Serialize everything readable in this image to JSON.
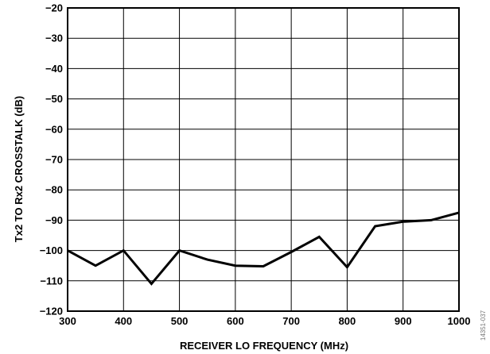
{
  "chart_data": {
    "type": "line",
    "xlabel": "RECEIVER LO FREQUENCY (MHz)",
    "ylabel": "Tx2 TO Rx2 CROSSTALK (dB)",
    "xlim": [
      300,
      1000
    ],
    "ylim": [
      -120,
      -20
    ],
    "xticks": [
      300,
      400,
      500,
      600,
      700,
      800,
      900,
      1000
    ],
    "yticks": [
      -20,
      -30,
      -40,
      -50,
      -60,
      -70,
      -80,
      -90,
      -100,
      -110,
      -120
    ],
    "xtick_labels": [
      "300",
      "400",
      "500",
      "600",
      "700",
      "800",
      "900",
      "1000"
    ],
    "ytick_labels": [
      "−20",
      "−30",
      "−40",
      "−50",
      "−60",
      "−70",
      "−80",
      "−90",
      "−100",
      "−110",
      "−120"
    ],
    "grid": true,
    "series": [
      {
        "x": [
          300,
          350,
          400,
          450,
          500,
          550,
          600,
          650,
          700,
          750,
          800,
          850,
          900,
          950,
          1000
        ],
        "y": [
          -100,
          -105,
          -100,
          -111,
          -100,
          -103,
          -105,
          -105.2,
          -100.5,
          -95.5,
          -105.5,
          -92,
          -90.5,
          -90,
          -87.5
        ]
      }
    ],
    "figure_id": "14351-037"
  }
}
